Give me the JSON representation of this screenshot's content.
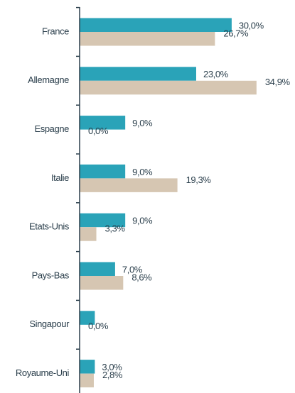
{
  "chart_data": {
    "type": "bar",
    "orientation": "horizontal",
    "categories": [
      "France",
      "Allemagne",
      "Espagne",
      "Italie",
      "Etats-Unis",
      "Pays-Bas",
      "Singapour",
      "Royaume-Uni"
    ],
    "series": [
      {
        "color": "#2aa3b8",
        "values": [
          30.0,
          23.0,
          9.0,
          9.0,
          9.0,
          7.0,
          3.0,
          3.0
        ],
        "value_labels": [
          "30,0%",
          "23,0%",
          "9,0%",
          "9,0%",
          "9,0%",
          "7,0%",
          null,
          "3,0%"
        ]
      },
      {
        "color": "#d6c6b2",
        "values": [
          26.7,
          34.9,
          0.0,
          19.3,
          3.3,
          8.6,
          0.0,
          2.8
        ],
        "value_labels": [
          "26,7%",
          "34,9%",
          "0,0%",
          "19,3%",
          "3,3%",
          "8,6%",
          "0,0%",
          "2,8%"
        ]
      }
    ]
  }
}
